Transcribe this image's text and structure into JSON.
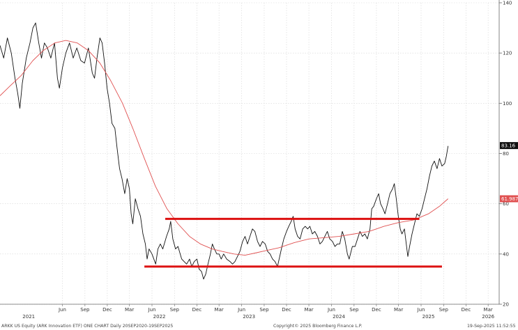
{
  "chart_data": {
    "type": "line",
    "ylim": [
      20,
      140
    ],
    "y_ticks": [
      20,
      40,
      60,
      80,
      100,
      120,
      140
    ],
    "x_start": "2020-09-20",
    "x_end": "2026-04-15",
    "x_ticks": [
      {
        "date": "2021-06-01",
        "label": "Jun"
      },
      {
        "date": "2021-09-01",
        "label": "Sep"
      },
      {
        "date": "2021-12-01",
        "label": "Dec"
      },
      {
        "date": "2022-03-01",
        "label": "Mar"
      },
      {
        "date": "2022-06-01",
        "label": "Jun"
      },
      {
        "date": "2022-09-01",
        "label": "Sep"
      },
      {
        "date": "2022-12-01",
        "label": "Dec"
      },
      {
        "date": "2023-03-01",
        "label": "Mar"
      },
      {
        "date": "2023-06-01",
        "label": "Jun"
      },
      {
        "date": "2023-09-01",
        "label": "Sep"
      },
      {
        "date": "2023-12-01",
        "label": "Dec"
      },
      {
        "date": "2024-03-01",
        "label": "Mar"
      },
      {
        "date": "2024-06-01",
        "label": "Jun"
      },
      {
        "date": "2024-09-01",
        "label": "Sep"
      },
      {
        "date": "2024-12-01",
        "label": "Dec"
      },
      {
        "date": "2025-03-01",
        "label": "Mar"
      },
      {
        "date": "2025-06-01",
        "label": "Jun"
      },
      {
        "date": "2025-09-01",
        "label": "Sep"
      },
      {
        "date": "2025-12-01",
        "label": "Dec"
      },
      {
        "date": "2026-03-01",
        "label": "Mar"
      }
    ],
    "year_labels": [
      {
        "date": "2021-01-15",
        "label": "2021"
      },
      {
        "date": "2022-07-01",
        "label": "2022"
      },
      {
        "date": "2023-07-01",
        "label": "2023"
      },
      {
        "date": "2024-07-01",
        "label": "2024"
      },
      {
        "date": "2025-07-01",
        "label": "2025"
      },
      {
        "date": "2026-03-01",
        "label": "2026"
      }
    ],
    "series": [
      {
        "color": "#111111",
        "points": [
          [
            "2020-09-20",
            123
          ],
          [
            "2020-10-05",
            118
          ],
          [
            "2020-10-20",
            126
          ],
          [
            "2020-11-05",
            120
          ],
          [
            "2020-11-20",
            110
          ],
          [
            "2020-12-01",
            104
          ],
          [
            "2020-12-10",
            98
          ],
          [
            "2020-12-20",
            108
          ],
          [
            "2021-01-05",
            118
          ],
          [
            "2021-01-20",
            124
          ],
          [
            "2021-02-01",
            130
          ],
          [
            "2021-02-12",
            132
          ],
          [
            "2021-02-25",
            124
          ],
          [
            "2021-03-08",
            118
          ],
          [
            "2021-03-20",
            124
          ],
          [
            "2021-04-01",
            122
          ],
          [
            "2021-04-15",
            118
          ],
          [
            "2021-04-30",
            124
          ],
          [
            "2021-05-12",
            110
          ],
          [
            "2021-05-20",
            106
          ],
          [
            "2021-06-01",
            114
          ],
          [
            "2021-06-15",
            120
          ],
          [
            "2021-06-30",
            124
          ],
          [
            "2021-07-15",
            118
          ],
          [
            "2021-07-30",
            122
          ],
          [
            "2021-08-15",
            117
          ],
          [
            "2021-08-30",
            116
          ],
          [
            "2021-09-15",
            122
          ],
          [
            "2021-10-01",
            112
          ],
          [
            "2021-10-10",
            110
          ],
          [
            "2021-10-20",
            118
          ],
          [
            "2021-11-01",
            126
          ],
          [
            "2021-11-10",
            124
          ],
          [
            "2021-11-20",
            116
          ],
          [
            "2021-11-30",
            106
          ],
          [
            "2021-12-10",
            100
          ],
          [
            "2021-12-20",
            92
          ],
          [
            "2022-01-01",
            90
          ],
          [
            "2022-01-10",
            82
          ],
          [
            "2022-01-20",
            74
          ],
          [
            "2022-01-30",
            70
          ],
          [
            "2022-02-10",
            64
          ],
          [
            "2022-02-20",
            70
          ],
          [
            "2022-03-01",
            66
          ],
          [
            "2022-03-08",
            56
          ],
          [
            "2022-03-15",
            52
          ],
          [
            "2022-03-25",
            62
          ],
          [
            "2022-04-05",
            58
          ],
          [
            "2022-04-15",
            55
          ],
          [
            "2022-04-25",
            48
          ],
          [
            "2022-05-05",
            44
          ],
          [
            "2022-05-12",
            38
          ],
          [
            "2022-05-20",
            42
          ],
          [
            "2022-06-01",
            40
          ],
          [
            "2022-06-16",
            36
          ],
          [
            "2022-06-25",
            42
          ],
          [
            "2022-07-05",
            44
          ],
          [
            "2022-07-15",
            42
          ],
          [
            "2022-07-30",
            47
          ],
          [
            "2022-08-10",
            50
          ],
          [
            "2022-08-16",
            53
          ],
          [
            "2022-08-25",
            46
          ],
          [
            "2022-09-05",
            42
          ],
          [
            "2022-09-15",
            43
          ],
          [
            "2022-09-30",
            38
          ],
          [
            "2022-10-10",
            37
          ],
          [
            "2022-10-20",
            36
          ],
          [
            "2022-11-01",
            38
          ],
          [
            "2022-11-10",
            35
          ],
          [
            "2022-11-20",
            37
          ],
          [
            "2022-12-01",
            38
          ],
          [
            "2022-12-10",
            34
          ],
          [
            "2022-12-20",
            33
          ],
          [
            "2022-12-28",
            30
          ],
          [
            "2023-01-06",
            32
          ],
          [
            "2023-01-15",
            36
          ],
          [
            "2023-01-25",
            40
          ],
          [
            "2023-02-02",
            44
          ],
          [
            "2023-02-10",
            42
          ],
          [
            "2023-02-20",
            40
          ],
          [
            "2023-03-01",
            40
          ],
          [
            "2023-03-10",
            38
          ],
          [
            "2023-03-20",
            40
          ],
          [
            "2023-04-01",
            38
          ],
          [
            "2023-04-15",
            37
          ],
          [
            "2023-04-25",
            36
          ],
          [
            "2023-05-05",
            37
          ],
          [
            "2023-05-15",
            39
          ],
          [
            "2023-05-25",
            41
          ],
          [
            "2023-06-05",
            45
          ],
          [
            "2023-06-15",
            47
          ],
          [
            "2023-06-25",
            44
          ],
          [
            "2023-07-05",
            47
          ],
          [
            "2023-07-15",
            50
          ],
          [
            "2023-07-25",
            49
          ],
          [
            "2023-08-05",
            45
          ],
          [
            "2023-08-15",
            43
          ],
          [
            "2023-08-25",
            45
          ],
          [
            "2023-09-05",
            44
          ],
          [
            "2023-09-15",
            41
          ],
          [
            "2023-09-25",
            40
          ],
          [
            "2023-10-05",
            38
          ],
          [
            "2023-10-15",
            37
          ],
          [
            "2023-10-25",
            35
          ],
          [
            "2023-11-01",
            38
          ],
          [
            "2023-11-10",
            42
          ],
          [
            "2023-11-20",
            46
          ],
          [
            "2023-12-01",
            49
          ],
          [
            "2023-12-10",
            51
          ],
          [
            "2023-12-20",
            53
          ],
          [
            "2023-12-28",
            55
          ],
          [
            "2024-01-05",
            50
          ],
          [
            "2024-01-15",
            47
          ],
          [
            "2024-01-25",
            46
          ],
          [
            "2024-02-05",
            50
          ],
          [
            "2024-02-15",
            51
          ],
          [
            "2024-02-25",
            50
          ],
          [
            "2024-03-05",
            51
          ],
          [
            "2024-03-15",
            48
          ],
          [
            "2024-03-25",
            49
          ],
          [
            "2024-04-05",
            47
          ],
          [
            "2024-04-15",
            44
          ],
          [
            "2024-04-25",
            45
          ],
          [
            "2024-05-05",
            47
          ],
          [
            "2024-05-15",
            49
          ],
          [
            "2024-05-25",
            46
          ],
          [
            "2024-06-05",
            45
          ],
          [
            "2024-06-15",
            43
          ],
          [
            "2024-06-25",
            44
          ],
          [
            "2024-07-05",
            44
          ],
          [
            "2024-07-15",
            49
          ],
          [
            "2024-07-25",
            46
          ],
          [
            "2024-08-05",
            40
          ],
          [
            "2024-08-12",
            38
          ],
          [
            "2024-08-25",
            43
          ],
          [
            "2024-09-05",
            43
          ],
          [
            "2024-09-15",
            46
          ],
          [
            "2024-09-25",
            49
          ],
          [
            "2024-10-05",
            47
          ],
          [
            "2024-10-15",
            48
          ],
          [
            "2024-10-25",
            46
          ],
          [
            "2024-11-05",
            50
          ],
          [
            "2024-11-12",
            58
          ],
          [
            "2024-11-20",
            59
          ],
          [
            "2024-12-01",
            62
          ],
          [
            "2024-12-10",
            64
          ],
          [
            "2024-12-18",
            60
          ],
          [
            "2024-12-28",
            58
          ],
          [
            "2025-01-05",
            56
          ],
          [
            "2025-01-15",
            60
          ],
          [
            "2025-01-25",
            64
          ],
          [
            "2025-02-05",
            66
          ],
          [
            "2025-02-12",
            68
          ],
          [
            "2025-02-20",
            62
          ],
          [
            "2025-02-28",
            55
          ],
          [
            "2025-03-08",
            50
          ],
          [
            "2025-03-15",
            48
          ],
          [
            "2025-03-25",
            50
          ],
          [
            "2025-04-04",
            42
          ],
          [
            "2025-04-08",
            39
          ],
          [
            "2025-04-15",
            43
          ],
          [
            "2025-04-25",
            48
          ],
          [
            "2025-05-05",
            52
          ],
          [
            "2025-05-15",
            56
          ],
          [
            "2025-05-25",
            55
          ],
          [
            "2025-06-05",
            58
          ],
          [
            "2025-06-15",
            62
          ],
          [
            "2025-06-25",
            66
          ],
          [
            "2025-07-05",
            71
          ],
          [
            "2025-07-15",
            75
          ],
          [
            "2025-07-25",
            77
          ],
          [
            "2025-08-05",
            74
          ],
          [
            "2025-08-15",
            78
          ],
          [
            "2025-08-25",
            75
          ],
          [
            "2025-09-05",
            76
          ],
          [
            "2025-09-12",
            79
          ],
          [
            "2025-09-19",
            83
          ]
        ]
      },
      {
        "color": "#e05050",
        "points": [
          [
            "2020-09-20",
            103
          ],
          [
            "2020-11-01",
            107
          ],
          [
            "2020-12-15",
            111
          ],
          [
            "2021-02-01",
            117
          ],
          [
            "2021-03-15",
            121
          ],
          [
            "2021-05-01",
            124
          ],
          [
            "2021-06-15",
            125
          ],
          [
            "2021-08-01",
            124
          ],
          [
            "2021-09-15",
            121
          ],
          [
            "2021-11-01",
            116
          ],
          [
            "2021-12-15",
            109
          ],
          [
            "2022-02-01",
            100
          ],
          [
            "2022-03-15",
            90
          ],
          [
            "2022-05-01",
            78
          ],
          [
            "2022-06-15",
            67
          ],
          [
            "2022-08-01",
            58
          ],
          [
            "2022-09-15",
            52
          ],
          [
            "2022-11-01",
            47
          ],
          [
            "2022-12-15",
            44
          ],
          [
            "2023-02-01",
            42
          ],
          [
            "2023-03-15",
            41
          ],
          [
            "2023-05-01",
            40
          ],
          [
            "2023-06-15",
            39.5
          ],
          [
            "2023-08-01",
            40.5
          ],
          [
            "2023-09-15",
            41.5
          ],
          [
            "2023-11-01",
            42.5
          ],
          [
            "2024-01-01",
            44.5
          ],
          [
            "2024-03-01",
            46
          ],
          [
            "2024-05-01",
            46.5
          ],
          [
            "2024-07-01",
            47
          ],
          [
            "2024-09-01",
            48
          ],
          [
            "2024-11-01",
            49
          ],
          [
            "2025-01-01",
            51
          ],
          [
            "2025-03-01",
            52.5
          ],
          [
            "2025-05-01",
            53.5
          ],
          [
            "2025-07-01",
            56
          ],
          [
            "2025-08-15",
            59
          ],
          [
            "2025-09-19",
            62
          ]
        ]
      }
    ],
    "annotations": [
      {
        "x1": "2022-07-25",
        "x2": "2025-05-25",
        "y": 54,
        "color": "#dd1111"
      },
      {
        "x1": "2022-05-01",
        "x2": "2025-08-25",
        "y": 35,
        "color": "#dd1111"
      }
    ],
    "last_tags": [
      {
        "value": 83.16,
        "label": "83.16",
        "bg": "#111111",
        "fg": "#ffffff"
      },
      {
        "value": 61.9879,
        "label": "61.9879",
        "bg": "#e05050",
        "fg": "#ffffff"
      }
    ]
  },
  "footer": {
    "left": "ARKK US Equity (ARK Innovation ETF) ONE CHART  Daily 20SEP2020-19SEP2025",
    "center": "Copyright© 2025 Bloomberg Finance L.P.",
    "right": "19-Sep-2025 11:52:55"
  }
}
